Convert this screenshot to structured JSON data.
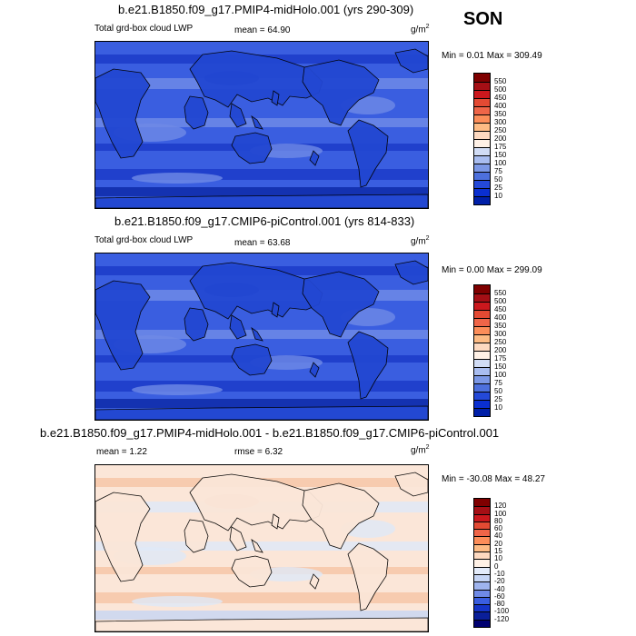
{
  "season": "SON",
  "panels": [
    {
      "id": "top",
      "title": "b.e21.B1850.f09_g17.PMIP4-midHolo.001 (yrs 290-309)",
      "left_label": "Total grd-box cloud LWP",
      "mean_label": "mean =  64.90",
      "units": "g/m",
      "units_sup": "2",
      "minmax": "Min =   0.01 Max = 309.49",
      "colorbar": {
        "ticks": [
          "550",
          "500",
          "450",
          "400",
          "350",
          "300",
          "250",
          "200",
          "175",
          "150",
          "100",
          "75",
          "50",
          "25",
          "10"
        ],
        "colors": [
          "#7f0000",
          "#a50f15",
          "#cb181d",
          "#e34a33",
          "#ef6548",
          "#fc8d59",
          "#fdbb84",
          "#fdd9c0",
          "#fff1e6",
          "#d1dcf5",
          "#a9bdf0",
          "#7c98e6",
          "#4d70dd",
          "#2449d8",
          "#0a2fd0",
          "#001fa8"
        ]
      },
      "map_colors": {
        "ocean": "#3a5ee0",
        "band_light": "#6f8ae6",
        "band_dark": "#1c3bc8",
        "deep": "#0e2aa8",
        "land": "#2247d2"
      }
    },
    {
      "id": "middle",
      "title": "b.e21.B1850.f09_g17.CMIP6-piControl.001 (yrs 814-833)",
      "left_label": "Total grd-box cloud LWP",
      "mean_label": "mean =  63.68",
      "units": "g/m",
      "units_sup": "2",
      "minmax": "Min =   0.00 Max = 299.09",
      "colorbar": {
        "ticks": [
          "550",
          "500",
          "450",
          "400",
          "350",
          "300",
          "250",
          "200",
          "175",
          "150",
          "100",
          "75",
          "50",
          "25",
          "10"
        ],
        "colors": [
          "#7f0000",
          "#a50f15",
          "#cb181d",
          "#e34a33",
          "#ef6548",
          "#fc8d59",
          "#fdbb84",
          "#fdd9c0",
          "#fff1e6",
          "#d1dcf5",
          "#a9bdf0",
          "#7c98e6",
          "#4d70dd",
          "#2449d8",
          "#0a2fd0",
          "#001fa8"
        ]
      },
      "map_colors": {
        "ocean": "#3a5ee0",
        "band_light": "#6f8ae6",
        "band_dark": "#1c3bc8",
        "deep": "#0e2aa8",
        "land": "#2247d2"
      }
    },
    {
      "id": "bottom",
      "title": "b.e21.B1850.f09_g17.PMIP4-midHolo.001 - b.e21.B1850.f09_g17.CMIP6-piControl.001",
      "left_label": "mean =   1.22",
      "mean_label": "rmse =   6.32",
      "units": "g/m",
      "units_sup": "2",
      "minmax": "Min = -30.08 Max =  48.27",
      "colorbar": {
        "ticks": [
          "120",
          "100",
          "80",
          "60",
          "40",
          "20",
          "15",
          "10",
          "0",
          "-10",
          "-20",
          "-40",
          "-60",
          "-80",
          "-100",
          "-120"
        ],
        "colors": [
          "#7f0000",
          "#a50f15",
          "#cb181d",
          "#e34a33",
          "#ef6548",
          "#fc8d59",
          "#fdbb84",
          "#fdd9c0",
          "#fff1e6",
          "#e3ebfa",
          "#c6d5f5",
          "#9fb4ee",
          "#6f8ae6",
          "#3a5ee0",
          "#1534c8",
          "#0a1f9a",
          "#000070"
        ]
      },
      "map_colors": {
        "ocean": "#fbe6d8",
        "band_light": "#dfe8f7",
        "band_dark": "#f6c6a8",
        "deep": "#c9d6f2",
        "land": "#fbe6d8"
      }
    }
  ]
}
